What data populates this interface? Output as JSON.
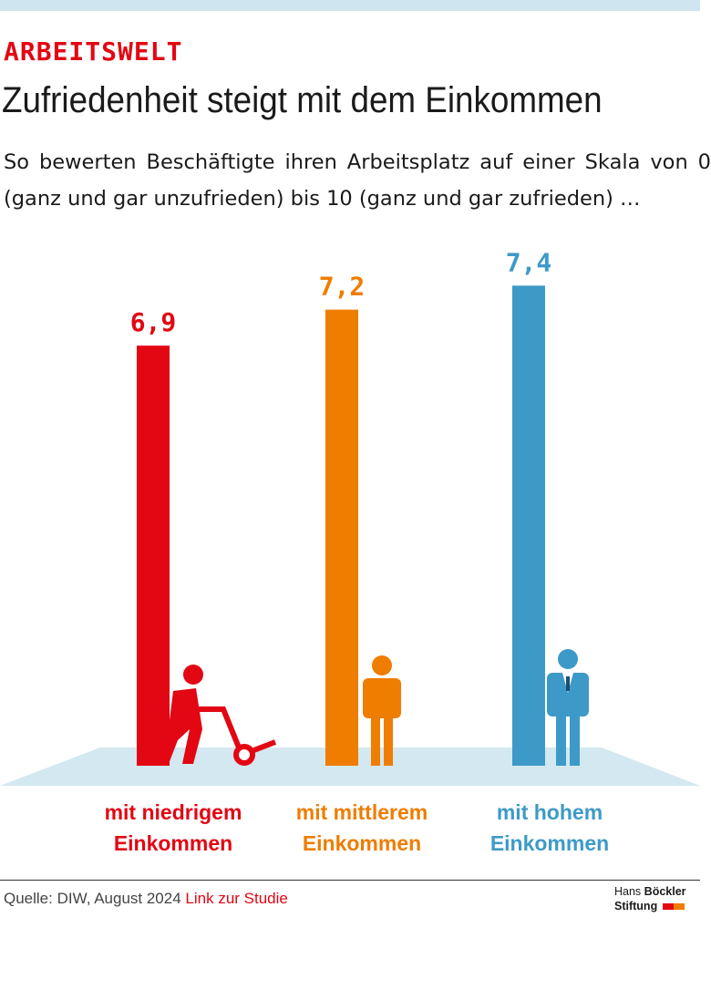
{
  "chart_data": {
    "type": "bar",
    "kicker": "ARBEITSWELT",
    "title": "Zufriedenheit steigt mit dem Einkommen",
    "subtitle": "So bewerten Beschäftigte ihren Arbeitsplatz auf einer Skala von 0 (ganz und gar unzufrieden) bis 10 (ganz und gar zufrieden) …",
    "categories": [
      "mit niedrigem Einkommen",
      "mit mittlerem Einkommen",
      "mit hohem Einkommen"
    ],
    "values": [
      6.9,
      7.2,
      7.4
    ],
    "value_labels": [
      "6,9",
      "7,2",
      "7,4"
    ],
    "colors": [
      "#e30613",
      "#ef7d00",
      "#3d9ac8"
    ],
    "ylim": [
      3.4,
      7.6
    ],
    "source": "Quelle: DIW, August 2024",
    "link": "Link zur Studie",
    "publisher": [
      "Hans",
      "Böckler",
      "Stiftung"
    ]
  }
}
